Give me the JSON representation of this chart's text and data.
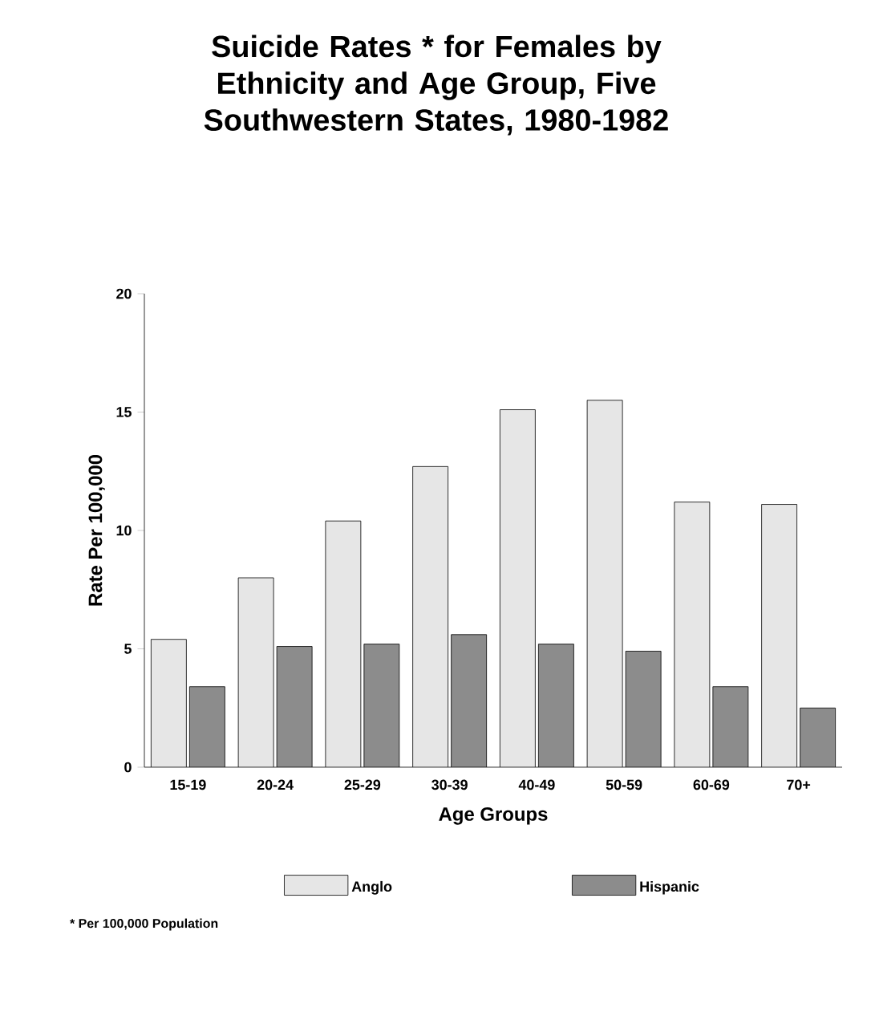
{
  "chart_data": {
    "type": "bar",
    "title": "Suicide Rates * for Females by Ethnicity and Age Group, Five Southwestern States, 1980-1982",
    "xlabel": "Age Groups",
    "ylabel": "Rate Per 100,000",
    "categories": [
      "15-19",
      "20-24",
      "25-29",
      "30-39",
      "40-49",
      "50-59",
      "60-69",
      "70+"
    ],
    "series": [
      {
        "name": "Anglo",
        "color": "#e6e6e6",
        "values": [
          5.4,
          8.0,
          10.4,
          12.7,
          15.1,
          15.5,
          11.2,
          11.1
        ]
      },
      {
        "name": "Hispanic",
        "color": "#8c8c8c",
        "values": [
          3.4,
          5.1,
          5.2,
          5.6,
          5.2,
          4.9,
          3.4,
          2.5
        ]
      }
    ],
    "ylim": [
      0,
      20
    ],
    "yticks": [
      0,
      5,
      10,
      15,
      20
    ],
    "grid": false,
    "legend": "bottom",
    "annotations": [
      "* Per 100,000 Population"
    ]
  }
}
